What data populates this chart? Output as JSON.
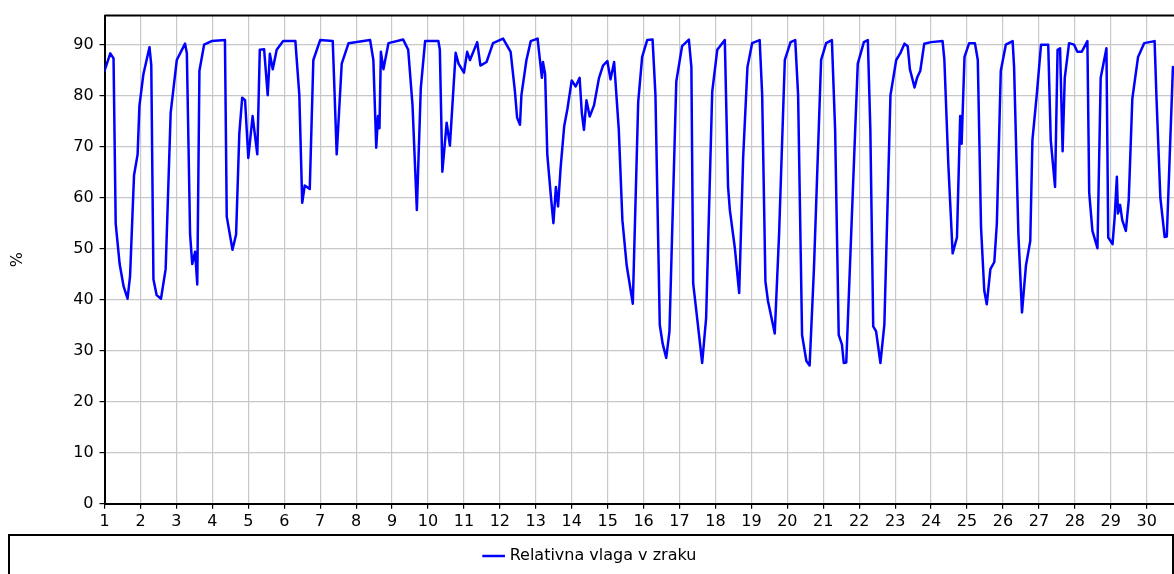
{
  "chart_data": {
    "type": "line",
    "ylabel": "%",
    "legend": "bottom",
    "grid": true,
    "marker": "none",
    "line_style": "solid",
    "xlim": [
      1,
      30.76
    ],
    "xticks": [
      1,
      2,
      3,
      4,
      5,
      6,
      7,
      8,
      9,
      10,
      11,
      12,
      13,
      14,
      15,
      16,
      17,
      18,
      19,
      20,
      21,
      22,
      23,
      24,
      25,
      26,
      27,
      28,
      29,
      30
    ],
    "ylim": [
      0,
      95.7
    ],
    "yticks": [
      0,
      10,
      20,
      30,
      40,
      50,
      60,
      70,
      80,
      90
    ],
    "series": [
      {
        "name": "Relativna vlaga v zraku",
        "color": "#0000ff",
        "x": [
          1.0,
          1.16,
          1.25,
          1.31,
          1.42,
          1.53,
          1.64,
          1.71,
          1.82,
          1.92,
          1.97,
          2.08,
          2.25,
          2.3,
          2.36,
          2.45,
          2.57,
          2.7,
          2.84,
          3.01,
          3.24,
          3.29,
          3.38,
          3.44,
          3.52,
          3.58,
          3.64,
          3.77,
          3.98,
          4.35,
          4.4,
          4.56,
          4.66,
          4.75,
          4.83,
          4.91,
          5.0,
          5.12,
          5.25,
          5.32,
          5.44,
          5.54,
          5.6,
          5.68,
          5.79,
          5.97,
          6.31,
          6.42,
          6.5,
          6.57,
          6.71,
          6.81,
          7.0,
          7.35,
          7.46,
          7.6,
          7.79,
          8.39,
          8.48,
          8.56,
          8.61,
          8.65,
          8.69,
          8.76,
          8.9,
          9.31,
          9.45,
          9.57,
          9.69,
          9.8,
          9.92,
          10.29,
          10.33,
          10.4,
          10.52,
          10.61,
          10.77,
          10.85,
          11.0,
          11.09,
          11.17,
          11.37,
          11.46,
          11.63,
          11.81,
          12.09,
          12.3,
          12.42,
          12.48,
          12.56,
          12.6,
          12.74,
          12.86,
          13.05,
          13.17,
          13.2,
          13.26,
          13.32,
          13.42,
          13.49,
          13.56,
          13.62,
          13.69,
          13.79,
          13.88,
          14.0,
          14.11,
          14.22,
          14.28,
          14.34,
          14.41,
          14.5,
          14.62,
          14.76,
          14.87,
          14.99,
          15.08,
          15.18,
          15.31,
          15.41,
          15.53,
          15.7,
          15.85,
          15.96,
          16.1,
          16.25,
          16.33,
          16.45,
          16.53,
          16.63,
          16.72,
          16.91,
          17.07,
          17.26,
          17.33,
          17.38,
          17.49,
          17.63,
          17.74,
          17.91,
          18.05,
          18.26,
          18.35,
          18.4,
          18.54,
          18.66,
          18.77,
          18.89,
          19.02,
          19.23,
          19.3,
          19.39,
          19.46,
          19.65,
          19.77,
          19.93,
          20.09,
          20.22,
          20.3,
          20.41,
          20.53,
          20.62,
          20.74,
          20.94,
          21.08,
          21.24,
          21.33,
          21.43,
          21.52,
          21.57,
          21.64,
          21.78,
          21.96,
          22.13,
          22.24,
          22.31,
          22.39,
          22.47,
          22.59,
          22.7,
          22.87,
          23.03,
          23.15,
          23.26,
          23.35,
          23.41,
          23.54,
          23.61,
          23.7,
          23.81,
          24.0,
          24.32,
          24.37,
          24.48,
          24.6,
          24.72,
          24.81,
          24.85,
          24.93,
          25.06,
          25.22,
          25.3,
          25.39,
          25.48,
          25.55,
          25.65,
          25.76,
          25.83,
          25.94,
          26.08,
          26.27,
          26.31,
          26.43,
          26.53,
          26.64,
          26.76,
          26.82,
          26.94,
          27.06,
          27.26,
          27.33,
          27.45,
          27.52,
          27.59,
          27.66,
          27.72,
          27.84,
          27.98,
          28.07,
          28.19,
          28.35,
          28.4,
          28.49,
          28.63,
          28.72,
          28.88,
          28.93,
          29.05,
          29.11,
          29.17,
          29.2,
          29.26,
          29.32,
          29.42,
          29.5,
          29.6,
          29.76,
          29.93,
          30.22,
          30.27,
          30.38,
          30.5,
          30.56,
          30.73
        ],
        "values": [
          84.9,
          88.3,
          87.3,
          54.9,
          47,
          42.6,
          40.2,
          44.7,
          64.4,
          68.5,
          78,
          84.2,
          89.5,
          86,
          44,
          40.9,
          40.2,
          46,
          76.7,
          87,
          90.2,
          88.3,
          52.8,
          47,
          49.4,
          43,
          84.9,
          90,
          90.7,
          90.9,
          56.3,
          49.8,
          52.8,
          72.6,
          79.6,
          79.1,
          67.8,
          76,
          68.5,
          89,
          89.1,
          80.1,
          88.2,
          85.2,
          89,
          90.7,
          90.7,
          80.1,
          59,
          62.4,
          61.7,
          87,
          90.9,
          90.7,
          68.5,
          86.3,
          90.3,
          90.9,
          87,
          69.8,
          76,
          73.6,
          88.6,
          85.2,
          90.3,
          91,
          89,
          78.1,
          57.6,
          81.5,
          90.7,
          90.7,
          89,
          65.1,
          74.7,
          70.2,
          88.4,
          86.3,
          84.5,
          88.6,
          87,
          90.5,
          85.9,
          86.6,
          90.3,
          91.2,
          88.6,
          80.8,
          75.7,
          74.3,
          80.1,
          87,
          90.7,
          91.2,
          83.5,
          86.6,
          84.2,
          68.5,
          60.3,
          55,
          62.1,
          58.3,
          65.8,
          74,
          77.4,
          83,
          81.8,
          83.5,
          76.7,
          73.3,
          79.1,
          75.9,
          78.1,
          83.5,
          85.9,
          86.8,
          83.2,
          86.6,
          73.3,
          55.6,
          46.7,
          39.2,
          78.8,
          87.6,
          90.9,
          91,
          80.1,
          35.1,
          31.4,
          28.6,
          33.8,
          82.8,
          89.7,
          91,
          85.6,
          43.2,
          36.4,
          27.6,
          36.4,
          80.8,
          89,
          90.9,
          62.2,
          57.6,
          50.1,
          41.3,
          67.8,
          85.6,
          90.3,
          90.9,
          80.1,
          43.6,
          39.8,
          33.4,
          52.8,
          87,
          90.5,
          90.9,
          80.1,
          33.1,
          28,
          27.1,
          46,
          87,
          90.3,
          90.9,
          73.3,
          33.1,
          31.2,
          27.6,
          27.7,
          53.5,
          86.3,
          90.5,
          90.9,
          73.3,
          34.8,
          33.8,
          27.6,
          35.1,
          80.1,
          87,
          88.4,
          90.2,
          89.7,
          85.2,
          81.6,
          83.5,
          84.9,
          90.2,
          90.5,
          90.7,
          87,
          66.5,
          49.1,
          52.2,
          76,
          70.6,
          87.6,
          90.3,
          90.3,
          87,
          54.2,
          41.8,
          39.1,
          46,
          47.4,
          54.9,
          84.9,
          90,
          90.7,
          85.6,
          52.8,
          37.5,
          46.7,
          51.5,
          71.3,
          80.1,
          90,
          90,
          71.3,
          62.1,
          89,
          89.3,
          69.1,
          83.5,
          90.3,
          90,
          88.6,
          88.6,
          90.7,
          61,
          53.5,
          50.1,
          83.5,
          89.3,
          52.2,
          50.9,
          56.3,
          64.1,
          56.9,
          58.6,
          55.6,
          53.5,
          59.5,
          79.4,
          87.6,
          90.3,
          90.7,
          80.1,
          60,
          52.3,
          52.4,
          85.6
        ]
      }
    ]
  }
}
